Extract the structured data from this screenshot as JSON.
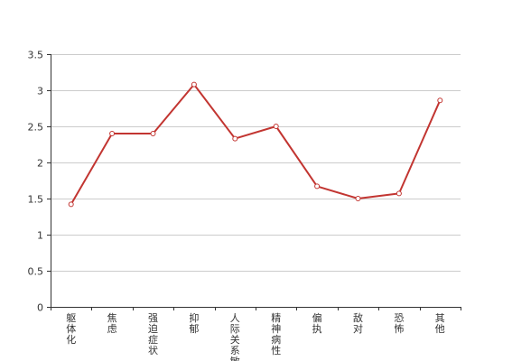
{
  "colors": {
    "background": "#ffffff",
    "grid": "#cccccc",
    "axis": "#333333",
    "text": "#333333",
    "series": "#c23531",
    "marker_fill": "#ffffff"
  },
  "chart_data": {
    "type": "line",
    "title": "",
    "xlabel": "",
    "ylabel": "",
    "categories": [
      "躯体化",
      "焦虑",
      "强迫症状",
      "抑郁",
      "人际关系敏感",
      "精神病性",
      "偏执",
      "敌对",
      "恐怖",
      "其他"
    ],
    "series": [
      {
        "values": [
          1.42,
          2.4,
          2.4,
          3.08,
          2.33,
          2.5,
          1.67,
          1.5,
          1.57,
          2.86
        ]
      }
    ],
    "ylim": [
      0,
      3.5
    ],
    "yticks": [
      "0",
      "0.5",
      "1",
      "1.5",
      "2",
      "2.5",
      "3",
      "3.5"
    ],
    "grid": true,
    "legend": "none"
  }
}
